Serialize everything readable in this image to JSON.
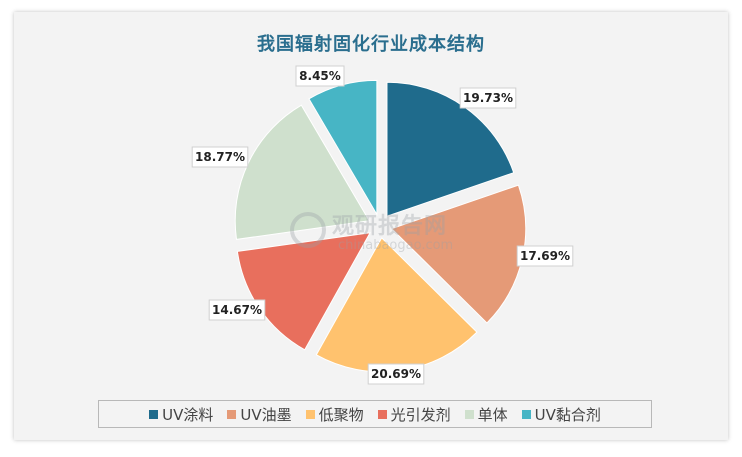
{
  "chart_data": {
    "type": "pie",
    "title": "我国辐射固化行业成本结构",
    "categories": [
      "UV涂料",
      "UV油墨",
      "低聚物",
      "光引发剂",
      "单体",
      "UV黏合剂"
    ],
    "values": [
      19.73,
      17.69,
      20.69,
      14.67,
      18.77,
      8.45
    ],
    "labels": [
      "19.73%",
      "17.69%",
      "20.69%",
      "14.67%",
      "18.77%",
      "8.45%"
    ],
    "colors": [
      "#1f6b8c",
      "#e59a77",
      "#ffc26e",
      "#e86f5d",
      "#cfe0cd",
      "#47b5c5"
    ],
    "legend_position": "bottom",
    "exploded": true
  },
  "watermark": {
    "main": "观研报告网",
    "sub": "chinabaogao.com"
  }
}
